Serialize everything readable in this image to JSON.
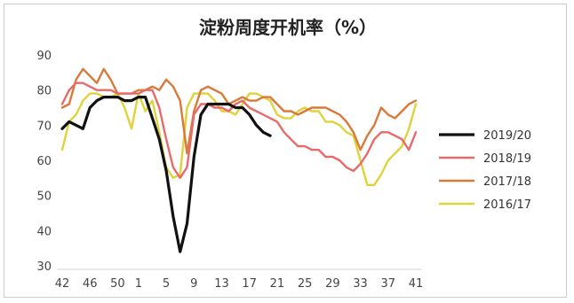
{
  "chart_data": {
    "type": "line",
    "title": "淀粉周度开机率（%）",
    "xlabel": "",
    "ylabel": "",
    "ylim": [
      30,
      90
    ],
    "yticks": [
      30,
      40,
      50,
      60,
      70,
      80,
      90
    ],
    "x_tick_labels": [
      "42",
      "46",
      "50",
      "1",
      "5",
      "9",
      "13",
      "17",
      "21",
      "25",
      "29",
      "33",
      "37",
      "41"
    ],
    "categories": [
      "42",
      "43",
      "44",
      "45",
      "46",
      "47",
      "48",
      "49",
      "50",
      "51",
      "52",
      "1",
      "2",
      "3",
      "4",
      "5",
      "6",
      "7",
      "8",
      "9",
      "10",
      "11",
      "12",
      "13",
      "14",
      "15",
      "16",
      "17",
      "18",
      "19",
      "20",
      "21",
      "22",
      "23",
      "24",
      "25",
      "26",
      "27",
      "28",
      "29",
      "30",
      "31",
      "32",
      "33",
      "34",
      "35",
      "36",
      "37",
      "38",
      "39",
      "40",
      "41"
    ],
    "grid": false,
    "legend_position": "right",
    "series": [
      {
        "name": "2019/20",
        "color": "#111111",
        "values": [
          69,
          71,
          70,
          69,
          75,
          77,
          78,
          78,
          78,
          77,
          77,
          78,
          78,
          72,
          66,
          57,
          44,
          34,
          42,
          61,
          73,
          76,
          76,
          76,
          76,
          75,
          75,
          73,
          70,
          68,
          67,
          null,
          null,
          null,
          null,
          null,
          null,
          null,
          null,
          null,
          null,
          null,
          null,
          null,
          null,
          null,
          null,
          null,
          null,
          null,
          null,
          null
        ]
      },
      {
        "name": "2018/19",
        "color": "#e86a6a",
        "values": [
          76,
          80,
          82,
          82,
          81,
          80,
          80,
          80,
          79,
          79,
          79,
          79,
          80,
          80,
          75,
          66,
          58,
          55,
          58,
          73,
          76,
          76,
          75,
          75,
          74,
          76,
          77,
          75,
          74,
          73,
          72,
          71,
          68,
          66,
          64,
          64,
          63,
          63,
          61,
          61,
          60,
          58,
          57,
          59,
          62,
          66,
          68,
          68,
          67,
          66,
          63,
          68
        ]
      },
      {
        "name": "2017/18",
        "color": "#d9793a",
        "values": [
          75,
          76,
          83,
          86,
          84,
          82,
          86,
          83,
          79,
          79,
          79,
          80,
          80,
          81,
          80,
          83,
          81,
          77,
          62,
          74,
          80,
          81,
          80,
          79,
          76,
          77,
          78,
          77,
          77,
          78,
          78,
          76,
          74,
          74,
          73,
          74,
          75,
          75,
          75,
          74,
          73,
          71,
          68,
          63,
          67,
          70,
          75,
          73,
          72,
          74,
          76,
          77
        ]
      },
      {
        "name": "2016/17",
        "color": "#e0d23a",
        "values": [
          63,
          71,
          73,
          77,
          79,
          79,
          78,
          78,
          79,
          75,
          69,
          79,
          74,
          77,
          68,
          58,
          55,
          56,
          75,
          79,
          79,
          79,
          77,
          74,
          74,
          73,
          76,
          79,
          79,
          78,
          77,
          73,
          72,
          72,
          74,
          75,
          74,
          74,
          71,
          71,
          70,
          68,
          67,
          60,
          53,
          53,
          56,
          60,
          62,
          64,
          69,
          76
        ]
      }
    ]
  }
}
